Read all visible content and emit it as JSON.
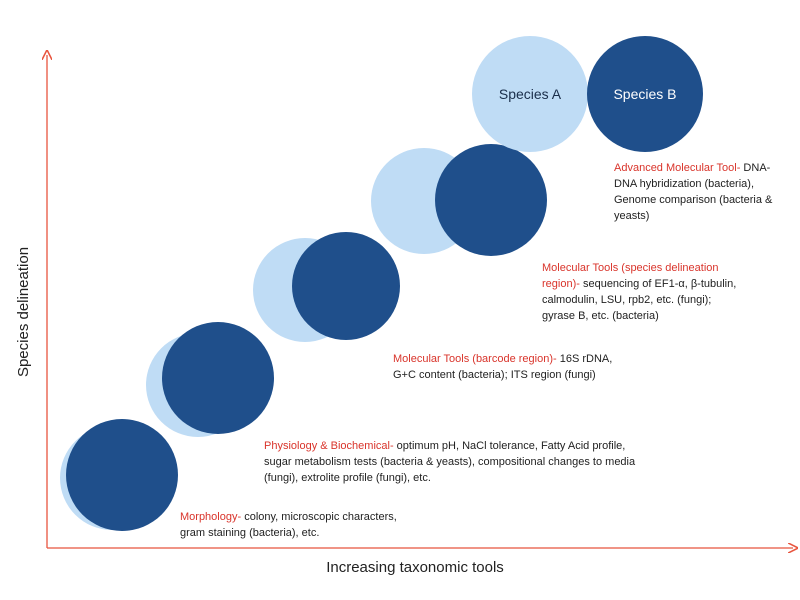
{
  "axes": {
    "x_label": "Increasing taxonomic tools",
    "y_label": "Species delineation"
  },
  "species": {
    "a": "Species A",
    "b": "Species B"
  },
  "colors": {
    "light_blue": "#bfdcf5",
    "dark_blue": "#1f4f8b",
    "axis": "#e8553f",
    "title_red": "#d9342b"
  },
  "stages": [
    {
      "title": "Morphology-",
      "body": " colony, microscopic characters, gram staining (bacteria), etc."
    },
    {
      "title": "Physiology & Biochemical-",
      "body": " optimum pH, NaCl tolerance, Fatty  Acid profile, sugar metabolism tests (bacteria & yeasts), compositional changes to media (fungi), extrolite profile (fungi), etc."
    },
    {
      "title": "Molecular Tools (barcode region)-",
      "body": " 16S rDNA, G+C content (bacteria); ITS region (fungi)"
    },
    {
      "title": "Molecular Tools (species delineation region)-",
      "body": " sequencing of EF1-α, β-tubulin, calmodulin, LSU, rpb2, etc. (fungi); gyrase B, etc. (bacteria)"
    },
    {
      "title": "Advanced Molecular Tool-",
      "body": " DNA-DNA hybridization (bacteria), Genome comparison (bacteria & yeasts)"
    }
  ]
}
